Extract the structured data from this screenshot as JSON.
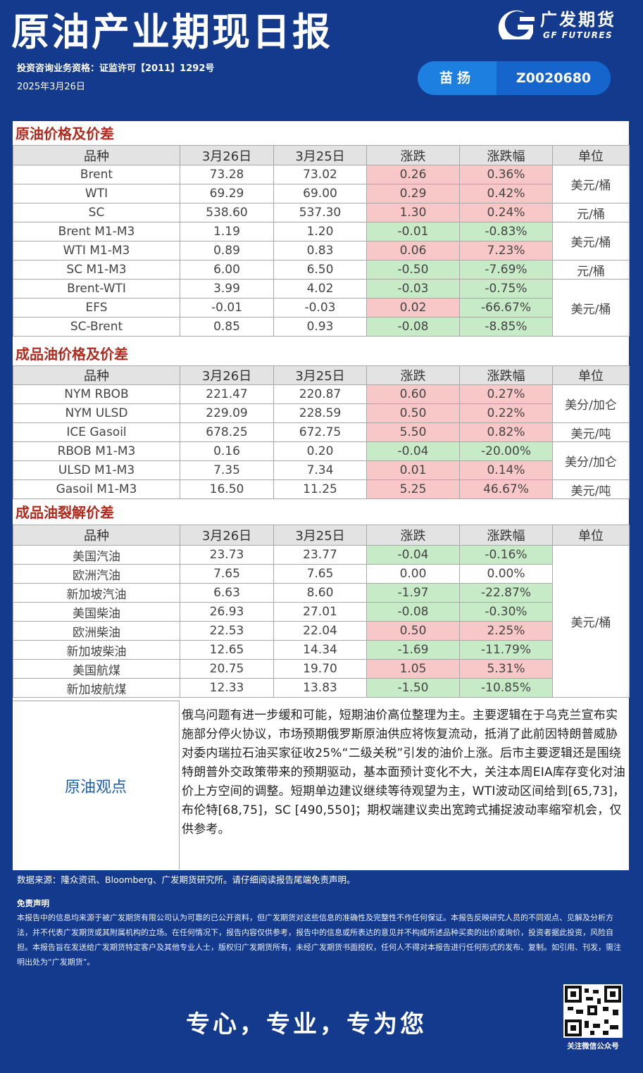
{
  "header": {
    "title": "原油产业期现日报",
    "logo_cn": "广发期货",
    "logo_en": "GF FUTURES",
    "license": "投资咨询业务资格：证监许可【2011】1292号",
    "date": "2025年3月26日",
    "analyst_name": "苗扬",
    "analyst_id": "Z0020680"
  },
  "colors": {
    "brand": "#133a8c",
    "up_bg": "#f8c7c7",
    "down_bg": "#c7ebc7",
    "section_title": "#b22a1e"
  },
  "headers": [
    "品种",
    "3月26日",
    "3月25日",
    "涨跌",
    "涨跌幅",
    "单位"
  ],
  "sections": [
    {
      "title": "原油价格及价差",
      "rows": [
        {
          "name": "Brent",
          "d1": "73.28",
          "d0": "73.02",
          "chg": "0.26",
          "pct": "0.36%",
          "dir": "up"
        },
        {
          "name": "WTI",
          "d1": "69.29",
          "d0": "69.00",
          "chg": "0.29",
          "pct": "0.42%",
          "dir": "up"
        },
        {
          "name": "SC",
          "d1": "538.60",
          "d0": "537.30",
          "chg": "1.30",
          "pct": "0.24%",
          "dir": "up"
        },
        {
          "name": "Brent  M1-M3",
          "d1": "1.19",
          "d0": "1.20",
          "chg": "-0.01",
          "pct": "-0.83%",
          "dir": "down"
        },
        {
          "name": "WTI  M1-M3",
          "d1": "0.89",
          "d0": "0.83",
          "chg": "0.06",
          "pct": "7.23%",
          "dir": "up"
        },
        {
          "name": "SC  M1-M3",
          "d1": "6.00",
          "d0": "6.50",
          "chg": "-0.50",
          "pct": "-7.69%",
          "dir": "down"
        },
        {
          "name": "Brent-WTI",
          "d1": "3.99",
          "d0": "4.02",
          "chg": "-0.03",
          "pct": "-0.75%",
          "dir": "down"
        },
        {
          "name": "EFS",
          "d1": "-0.01",
          "d0": "-0.03",
          "chg": "0.02",
          "pct": "-66.67%",
          "dir": "up",
          "pct_dir": "down"
        },
        {
          "name": "SC-Brent",
          "d1": "0.85",
          "d0": "0.93",
          "chg": "-0.08",
          "pct": "-8.85%",
          "dir": "down"
        }
      ],
      "units": [
        {
          "label": "美元/桶",
          "span": 2
        },
        {
          "label": "元/桶",
          "span": 1
        },
        {
          "label": "美元/桶",
          "span": 2
        },
        {
          "label": "元/桶",
          "span": 1
        },
        {
          "label": "美元/桶",
          "span": 3
        }
      ]
    },
    {
      "title": "成品油价格及价差",
      "rows": [
        {
          "name": "NYM RBOB",
          "d1": "221.47",
          "d0": "220.87",
          "chg": "0.60",
          "pct": "0.27%",
          "dir": "up"
        },
        {
          "name": "NYM ULSD",
          "d1": "229.09",
          "d0": "228.59",
          "chg": "0.50",
          "pct": "0.22%",
          "dir": "up"
        },
        {
          "name": "ICE Gasoil",
          "d1": "678.25",
          "d0": "672.75",
          "chg": "5.50",
          "pct": "0.82%",
          "dir": "up"
        },
        {
          "name": "RBOB  M1-M3",
          "d1": "0.16",
          "d0": "0.20",
          "chg": "-0.04",
          "pct": "-20.00%",
          "dir": "down"
        },
        {
          "name": "ULSD  M1-M3",
          "d1": "7.35",
          "d0": "7.34",
          "chg": "0.01",
          "pct": "0.14%",
          "dir": "up"
        },
        {
          "name": "Gasoil  M1-M3",
          "d1": "16.50",
          "d0": "11.25",
          "chg": "5.25",
          "pct": "46.67%",
          "dir": "up"
        }
      ],
      "units": [
        {
          "label": "美分/加仑",
          "span": 2
        },
        {
          "label": "美元/吨",
          "span": 1
        },
        {
          "label": "美分/加仑",
          "span": 2
        },
        {
          "label": "美元/吨",
          "span": 1
        }
      ]
    },
    {
      "title": "成品油裂解价差",
      "rows": [
        {
          "name": "美国汽油",
          "d1": "23.73",
          "d0": "23.77",
          "chg": "-0.04",
          "pct": "-0.16%",
          "dir": "down"
        },
        {
          "name": "欧洲汽油",
          "d1": "7.65",
          "d0": "7.65",
          "chg": "0.00",
          "pct": "0.00%",
          "dir": "flat"
        },
        {
          "name": "新加坡汽油",
          "d1": "6.63",
          "d0": "8.60",
          "chg": "-1.97",
          "pct": "-22.87%",
          "dir": "down"
        },
        {
          "name": "美国柴油",
          "d1": "26.93",
          "d0": "27.01",
          "chg": "-0.08",
          "pct": "-0.30%",
          "dir": "down"
        },
        {
          "name": "欧洲柴油",
          "d1": "22.53",
          "d0": "22.04",
          "chg": "0.50",
          "pct": "2.25%",
          "dir": "up"
        },
        {
          "name": "新加坡柴油",
          "d1": "12.65",
          "d0": "14.34",
          "chg": "-1.69",
          "pct": "-11.79%",
          "dir": "down"
        },
        {
          "name": "美国航煤",
          "d1": "20.75",
          "d0": "19.70",
          "chg": "1.05",
          "pct": "5.31%",
          "dir": "up"
        },
        {
          "name": "新加坡航煤",
          "d1": "12.33",
          "d0": "13.83",
          "chg": "-1.50",
          "pct": "-10.85%",
          "dir": "down"
        }
      ],
      "units": [
        {
          "label": "美元/桶",
          "span": 8
        }
      ]
    }
  ],
  "viewpoint": {
    "label": "原油观点",
    "text": "俄乌问题有进一步缓和可能，短期油价高位整理为主。主要逻辑在于乌克兰宣布实施部分停火协议，市场预期俄罗斯原油供应将恢复流动，抵消了此前因特朗普威胁对委内瑞拉石油买家征收25%“二级关税”引发的油价上涨。后市主要逻辑还是围绕特朗普外交政策带来的预期驱动，基本面预计变化不大，关注本周EIA库存变化对油价上方空间的调整。短期单边建议继续等待观望为主，WTI波动区间给到[65,73]，布伦特[68,75]，SC [490,550]；期权端建议卖出宽跨式捕捉波动率缩窄机会，仅供参考。"
  },
  "footer": {
    "source": "数据来源：隆众资讯、Bloomberg、广发期货研究所。请仔细阅读报告尾端免责声明。",
    "disclaimer_title": "免责声明",
    "disclaimer": "本报告中的信息均来源于被广发期货有限公司认为可靠的已公开资料，但广发期货对这些信息的准确性及完整性不作任何保证。本报告反映研究人员的不同观点、见解及分析方法，并不代表广发期货或其附属机构的立场。在任何情况下，报告内容仅供参考，报告中的信息或所表达的意见并不构成所述品种买卖的出价或询价，投资者据此投资，风险自担。本报告旨在发送给广发期货特定客户及其他专业人士，版权归广发期货所有，未经广发期货书面授权，任何人不得对本报告进行任何形式的发布、复制。如引用、刊发，需注明出处为“广发期货”。",
    "slogan": "专心，专业，专为您",
    "qr_caption": "关注微信公众号"
  }
}
